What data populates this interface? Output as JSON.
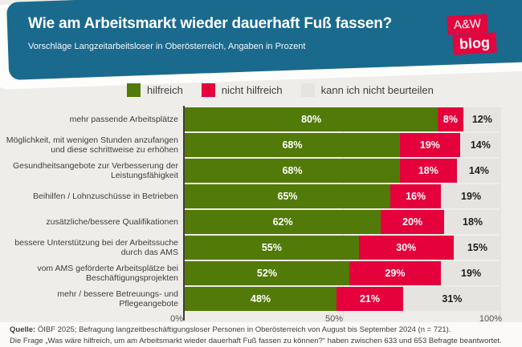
{
  "header": {
    "title": "Wie am Arbeitsmarkt wieder dauerhaft Fuß fassen?",
    "subtitle": "Vorschläge Langzeitarbeitsloser in Oberösterreich, Angaben in Prozent",
    "logo_line1": "A&W",
    "logo_line2": "blog"
  },
  "colors": {
    "banner_blue": "#1A6A8E",
    "brand_red": "#E4043E",
    "bar_green": "#527A08",
    "bar_red": "#E4013C",
    "bar_gray": "#E5E4E1",
    "background": "#EFEDEA"
  },
  "chart_data": {
    "type": "bar",
    "orientation": "horizontal",
    "stacked": true,
    "categories": [
      "mehr passende Arbeitsplätze",
      "Möglichkeit, mit wenigen Stunden anzufangen und diese schrittweise zu erhöhen",
      "Gesundheitsangebote zur Verbesserung der Leistungsfähigkeit",
      "Beihilfen / Lohnzuschüsse in Betrieben",
      "zusätzliche/bessere Qualifikationen",
      "bessere Unterstützung bei der Arbeitssuche durch das AMS",
      "vom AMS geförderte Arbeitsplätze bei Beschäftigungsprojekten",
      "mehr / bessere Betreuungs- und Pflegeangebote"
    ],
    "series": [
      {
        "name": "hilfreich",
        "color": "#527A08",
        "values": [
          80,
          68,
          68,
          65,
          62,
          55,
          52,
          48
        ]
      },
      {
        "name": "nicht hilfreich",
        "color": "#E4013C",
        "values": [
          8,
          19,
          18,
          16,
          20,
          30,
          29,
          21
        ]
      },
      {
        "name": "kann ich nicht beurteilen",
        "color": "#E5E4E1",
        "values": [
          12,
          14,
          14,
          19,
          18,
          15,
          19,
          31
        ]
      }
    ],
    "value_suffix": "%",
    "xlim": [
      0,
      100
    ],
    "x_ticks": [
      "0%",
      "50%",
      "100%"
    ],
    "x_tick_positions": [
      0,
      50,
      100
    ],
    "legend_position": "top",
    "grid": "vertical"
  },
  "footer": {
    "line1_bold": "Quelle:",
    "line1_rest": " ÖIBF 2025; Befragung langzeitbeschäftigungsloser Personen in Oberösterreich von August bis September 2024 (n = 721).",
    "line2": "Die Frage „Was wäre hilfreich, um am Arbeitsmarkt wieder dauerhaft Fuß fassen zu können?“ haben zwischen 633 und 653 Befragte beantwortet."
  }
}
